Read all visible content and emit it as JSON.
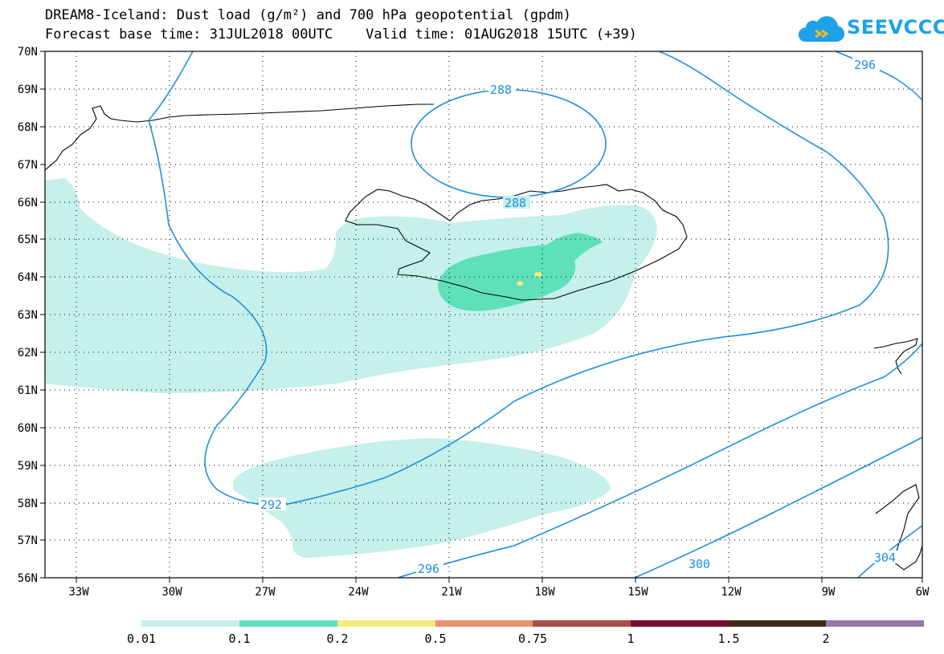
{
  "title_line1": "DREAM8-Iceland: Dust load (g/m²) and 700 hPa geopotential (gpdm)",
  "title_line2": "Forecast base time: 31JUL2018 00UTC    Valid time: 01AUG2018 15UTC (+39)",
  "logo_text": "SEEVCCC",
  "lat_labels": [
    "70N",
    "69N",
    "68N",
    "67N",
    "66N",
    "65N",
    "64N",
    "63N",
    "62N",
    "61N",
    "60N",
    "59N",
    "58N",
    "57N",
    "56N"
  ],
  "lon_labels": [
    "33W",
    "30W",
    "27W",
    "24W",
    "21W",
    "18W",
    "15W",
    "12W",
    "9W",
    "6W"
  ],
  "contour_labels": [
    "288",
    "288",
    "292",
    "296",
    "296",
    "300",
    "304"
  ],
  "colorbar": {
    "labels": [
      "0.01",
      "0.1",
      "0.2",
      "0.5",
      "0.75",
      "1",
      "1.5",
      "2"
    ],
    "colors": [
      "#c6f0ea",
      "#5ee0bb",
      "#f5ea7a",
      "#e89070",
      "#a85048",
      "#7a0c30",
      "#3e2a14",
      "#9678a8"
    ]
  },
  "colors": {
    "dust_light": "#c6f0ea",
    "dust_medium": "#5ee0bb",
    "dust_high": "#f5ea7a",
    "contour": "#1e90e0",
    "logo": "#1ea1e8"
  }
}
